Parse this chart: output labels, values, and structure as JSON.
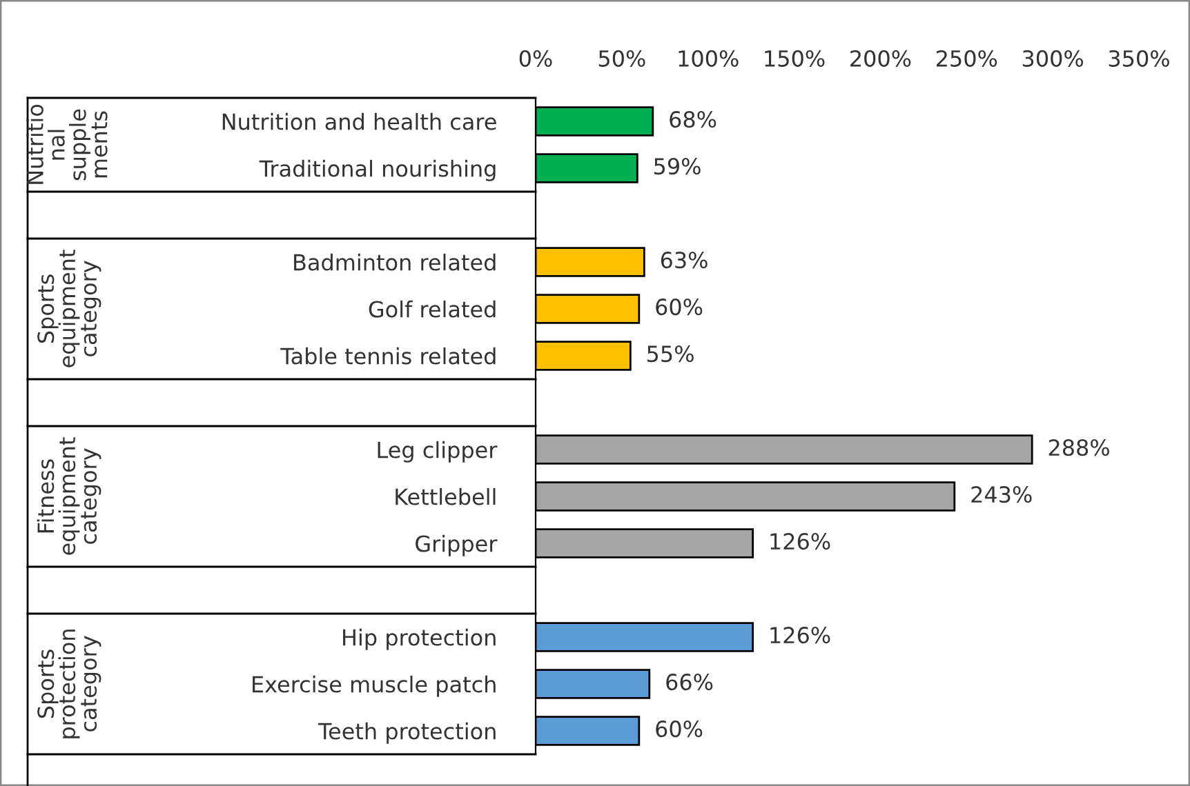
{
  "chart_data": {
    "type": "bar",
    "orientation": "horizontal",
    "categories": [
      "Nutrition and health care",
      "Traditional nourishing",
      null,
      "Badminton related",
      "Golf related",
      "Table tennis related",
      null,
      "Leg clipper",
      "Kettlebell",
      "Gripper",
      null,
      "Hip protection",
      "Exercise muscle patch",
      "Teeth protection"
    ],
    "values": [
      68,
      59,
      null,
      63,
      60,
      55,
      null,
      288,
      243,
      126,
      null,
      126,
      66,
      60
    ],
    "colors": [
      "#00b050",
      "#00b050",
      null,
      "#ffc000",
      "#ffc000",
      "#ffc000",
      null,
      "#a5a5a5",
      "#a5a5a5",
      "#a5a5a5",
      null,
      "#5b9bd5",
      "#5b9bd5",
      "#5b9bd5"
    ],
    "value_labels": [
      "68%",
      "59%",
      null,
      "63%",
      "60%",
      "55%",
      null,
      "288%",
      "243%",
      "126%",
      null,
      "126%",
      "66%",
      "60%"
    ],
    "xlim": [
      0,
      350
    ],
    "xticks": [
      {
        "value": 0,
        "label": "0%"
      },
      {
        "value": 50,
        "label": "50%"
      },
      {
        "value": 100,
        "label": "100%"
      },
      {
        "value": 150,
        "label": "150%"
      },
      {
        "value": 200,
        "label": "200%"
      },
      {
        "value": 250,
        "label": "250%"
      },
      {
        "value": 300,
        "label": "300%"
      },
      {
        "value": 350,
        "label": "350%"
      }
    ],
    "annotations": [
      "Nutritio\nnal\nsupple\nments",
      "Sports\nequipment\ncategory",
      "Fitness\nequipment\ncategory",
      "Sports\nprotection\ncategory"
    ],
    "grid": false,
    "legend": false
  }
}
